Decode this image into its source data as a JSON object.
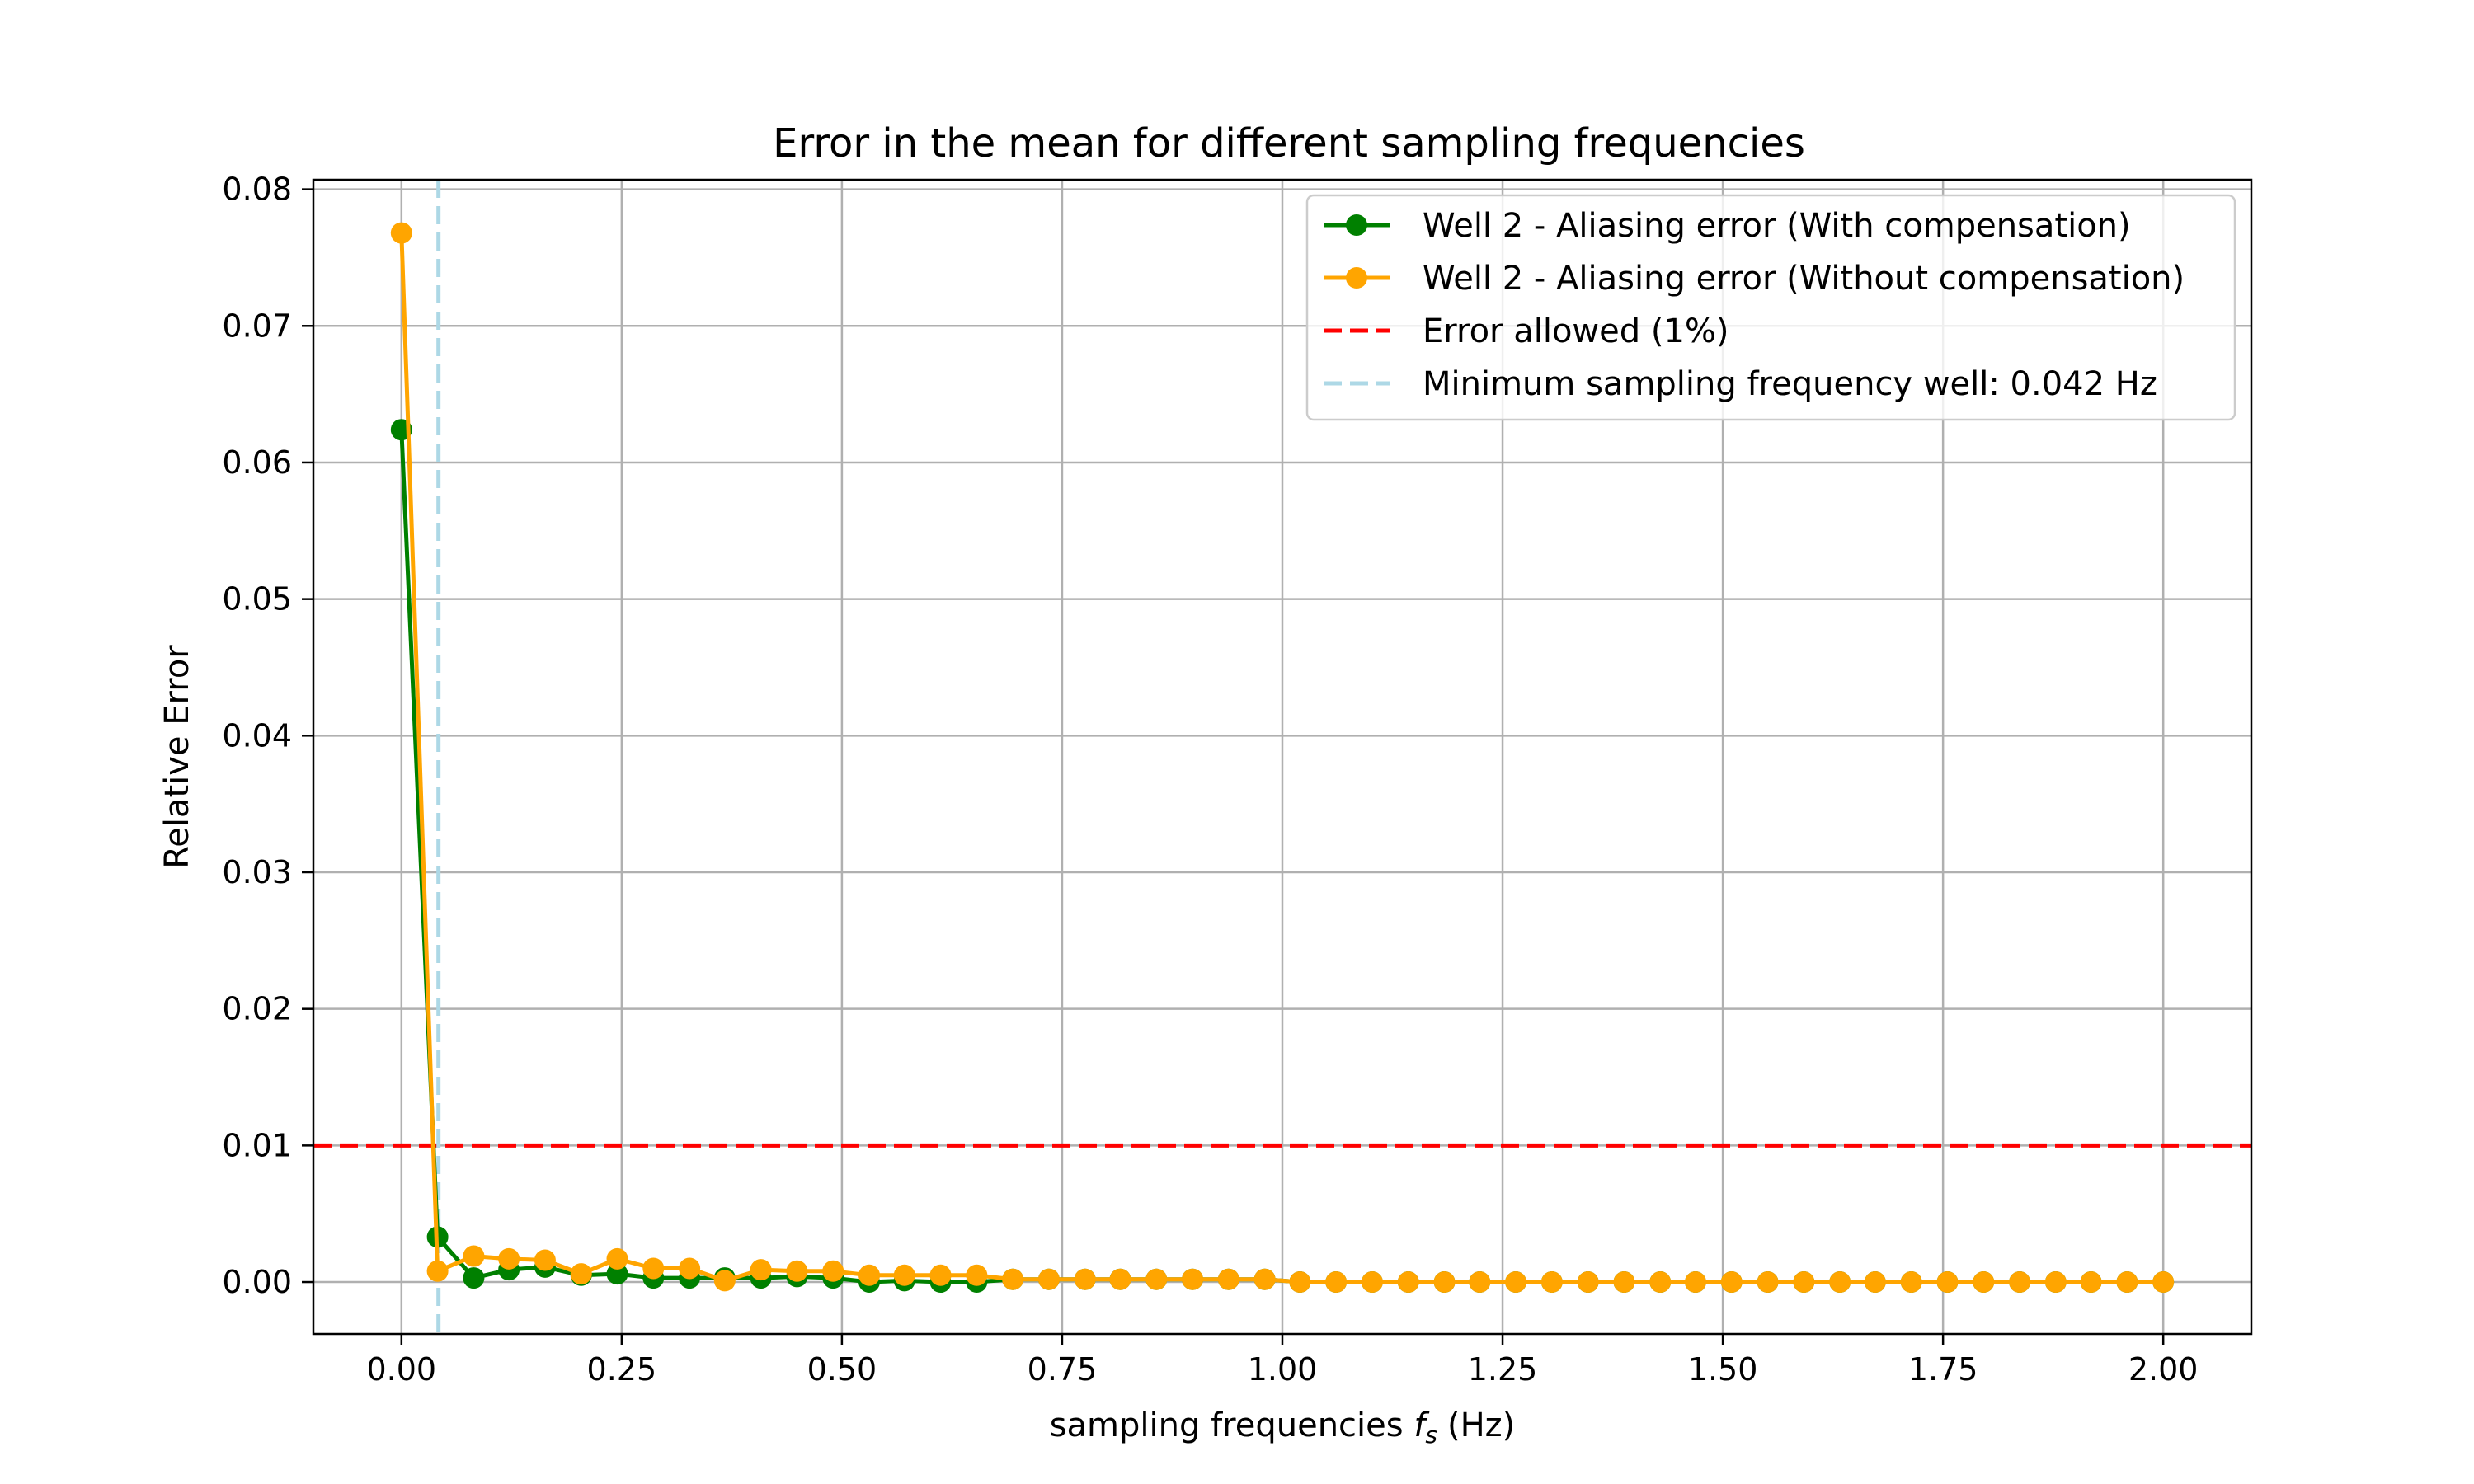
{
  "chart_data": {
    "type": "line",
    "title": "Error in the mean for different sampling frequencies",
    "xlabel": "sampling frequencies",
    "xlabel_symbol": "f",
    "xlabel_subscript": "s",
    "xlabel_unit": "(Hz)",
    "ylabel": "Relative Error",
    "xlim": [
      -0.1,
      2.1
    ],
    "ylim": [
      -0.0038,
      0.0807
    ],
    "xticks": [
      0.0,
      0.25,
      0.5,
      0.75,
      1.0,
      1.25,
      1.5,
      1.75,
      2.0
    ],
    "xtick_labels": [
      "0.00",
      "0.25",
      "0.50",
      "0.75",
      "1.00",
      "1.25",
      "1.50",
      "1.75",
      "2.00"
    ],
    "yticks": [
      0.0,
      0.01,
      0.02,
      0.03,
      0.04,
      0.05,
      0.06,
      0.07,
      0.08
    ],
    "ytick_labels": [
      "0.00",
      "0.01",
      "0.02",
      "0.03",
      "0.04",
      "0.05",
      "0.06",
      "0.07",
      "0.08"
    ],
    "grid": true,
    "legend_position": "upper right",
    "x": [
      0.0,
      0.041,
      0.082,
      0.122,
      0.163,
      0.204,
      0.245,
      0.286,
      0.327,
      0.367,
      0.408,
      0.449,
      0.49,
      0.531,
      0.571,
      0.612,
      0.653,
      0.694,
      0.735,
      0.776,
      0.816,
      0.857,
      0.898,
      0.939,
      0.98,
      1.02,
      1.061,
      1.102,
      1.143,
      1.184,
      1.224,
      1.265,
      1.306,
      1.347,
      1.388,
      1.429,
      1.469,
      1.51,
      1.551,
      1.592,
      1.633,
      1.673,
      1.714,
      1.755,
      1.796,
      1.837,
      1.878,
      1.918,
      1.959,
      2.0
    ],
    "series": [
      {
        "name": "Well 2 - Aliasing error (With compensation)",
        "color": "#008000",
        "style": "solid-marker",
        "values": [
          0.0624,
          0.0033,
          0.0003,
          0.0009,
          0.0011,
          0.0005,
          0.0006,
          0.0003,
          0.0003,
          0.0003,
          0.0003,
          0.0004,
          0.0003,
          0.0,
          0.0001,
          0.0,
          0.0,
          0.0002,
          0.0002,
          0.0002,
          0.0002,
          0.0002,
          0.0002,
          0.0002,
          0.0002,
          0.0,
          0.0,
          0.0,
          0.0,
          0.0,
          0.0,
          0.0,
          0.0,
          0.0,
          0.0,
          0.0,
          0.0,
          0.0,
          0.0,
          0.0,
          0.0,
          0.0,
          0.0,
          0.0,
          0.0,
          0.0,
          0.0,
          0.0,
          0.0,
          0.0
        ]
      },
      {
        "name": "Well 2 - Aliasing error (Without compensation)",
        "color": "#FFA500",
        "style": "solid-marker",
        "values": [
          0.0768,
          0.0008,
          0.0019,
          0.0017,
          0.0016,
          0.0006,
          0.0017,
          0.001,
          0.001,
          0.0001,
          0.0009,
          0.0008,
          0.0008,
          0.0005,
          0.0005,
          0.0005,
          0.0005,
          0.0002,
          0.0002,
          0.0002,
          0.0002,
          0.0002,
          0.0002,
          0.0002,
          0.0002,
          0.0,
          0.0,
          0.0,
          0.0,
          0.0,
          0.0,
          0.0,
          0.0,
          0.0,
          0.0,
          0.0,
          0.0,
          0.0,
          0.0,
          0.0,
          0.0,
          0.0,
          0.0,
          0.0,
          0.0,
          0.0,
          0.0,
          0.0,
          0.0,
          0.0
        ]
      }
    ],
    "reference_lines": [
      {
        "name": "Error allowed (1%)",
        "orientation": "horizontal",
        "value": 0.01,
        "color": "#FF0000",
        "style": "dashed"
      },
      {
        "name": "Minimum sampling frequency well: 0.042 Hz",
        "orientation": "vertical",
        "value": 0.042,
        "color": "#ADD8E6",
        "style": "dashed"
      }
    ]
  }
}
